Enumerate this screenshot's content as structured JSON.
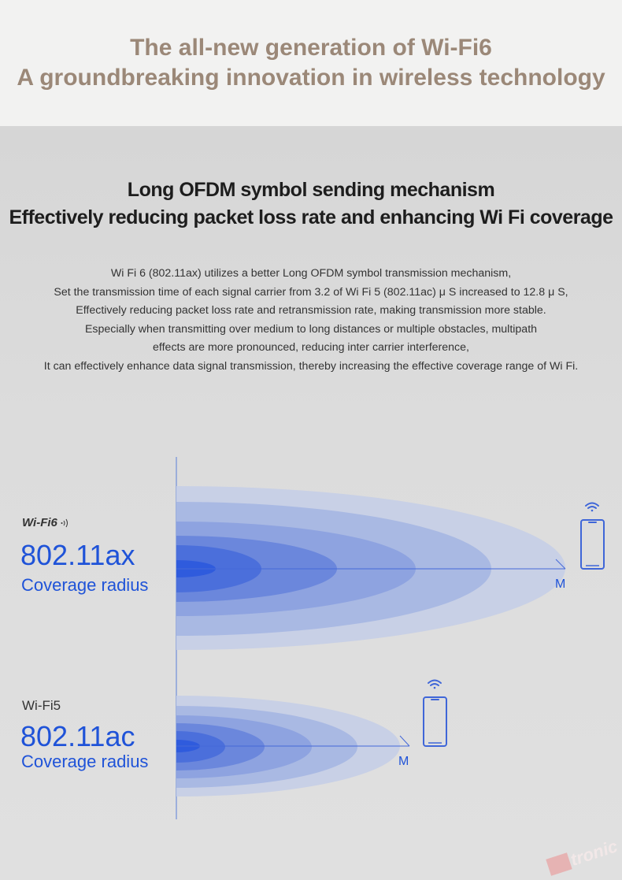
{
  "header": {
    "line1": "The all-new generation of Wi-Fi6",
    "line2": "A groundbreaking innovation in wireless technology"
  },
  "section": {
    "title1": "Long OFDM symbol sending mechanism",
    "title2": "Effectively reducing packet loss rate and enhancing Wi Fi coverage",
    "paragraph": [
      "Wi Fi 6 (802.11ax) utilizes a better Long OFDM symbol transmission mechanism,",
      "Set the transmission time of each signal carrier from 3.2 of Wi Fi 5 (802.11ac) μ S increased to 12.8 μ S,",
      "Effectively reducing packet loss rate and retransmission rate, making transmission more stable.",
      "Especially when transmitting over medium to long distances or multiple obstacles, multipath",
      "effects are more pronounced, reducing inter carrier interference,",
      "It can effectively enhance data signal transmission, thereby increasing the effective coverage range of Wi Fi."
    ]
  },
  "wifi6": {
    "label": "Wi-Fi6",
    "standard": "802.11ax",
    "coverage": "Coverage radius",
    "marker": "M"
  },
  "wifi5": {
    "label": "Wi-Fi5",
    "standard": "802.11ac",
    "coverage": "Coverage radius",
    "marker": "M"
  },
  "watermark": "tronic",
  "colors": {
    "accent": "#1f53d8",
    "title": "#9b8878"
  },
  "icons": {
    "device": "phone-icon",
    "signal": "wifi-icon"
  }
}
